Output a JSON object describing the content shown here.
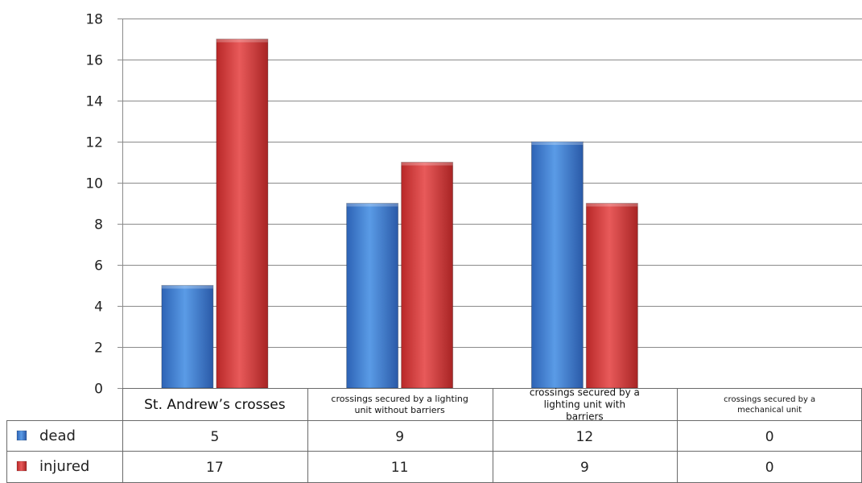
{
  "chart_data": {
    "type": "bar",
    "categories": [
      "St. Andrew’s crosses",
      "crossings secured by a lighting unit without barriers",
      "crossings secured by a lighting unit with barriers",
      "crossings secured by a mechanical unit"
    ],
    "series": [
      {
        "name": "dead",
        "values": [
          5,
          9,
          12,
          0
        ],
        "color": "#3f7fd0"
      },
      {
        "name": "injured",
        "values": [
          17,
          11,
          9,
          0
        ],
        "color": "#d43c3c"
      }
    ],
    "ylim": [
      0,
      18
    ],
    "yticks": [
      0,
      2,
      4,
      6,
      8,
      10,
      12,
      14,
      16,
      18
    ],
    "grid": true,
    "data_table": true
  }
}
